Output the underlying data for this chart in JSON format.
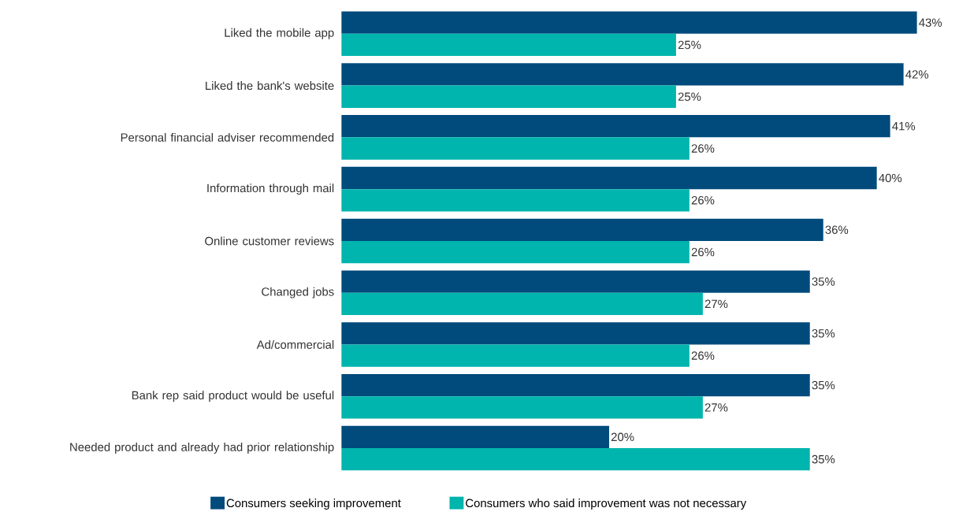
{
  "chart_data": {
    "type": "bar",
    "orientation": "horizontal",
    "legend": "bottom",
    "categories": [
      "Liked the mobile app",
      "Liked the bank's website",
      "Personal financial adviser recommended",
      "Information through mail",
      "Online customer reviews",
      "Changed jobs",
      "Ad/commercial",
      "Bank rep said product would be useful",
      "Needed product and already had prior relationship"
    ],
    "series": [
      {
        "name": "Consumers seeking improvement",
        "color": "#004a7c",
        "values": [
          43,
          42,
          41,
          40,
          36,
          35,
          35,
          35,
          20
        ],
        "value_labels": [
          "43%",
          "42%",
          "41%",
          "40%",
          "36%",
          "35%",
          "35%",
          "35%",
          "20%"
        ]
      },
      {
        "name": "Consumers who said improvement was not necessary",
        "color": "#00b5ad",
        "values": [
          25,
          25,
          26,
          26,
          26,
          27,
          26,
          27,
          35
        ],
        "value_labels": [
          "25%",
          "25%",
          "26%",
          "26%",
          "26%",
          "27%",
          "26%",
          "27%",
          "35%"
        ]
      }
    ]
  }
}
